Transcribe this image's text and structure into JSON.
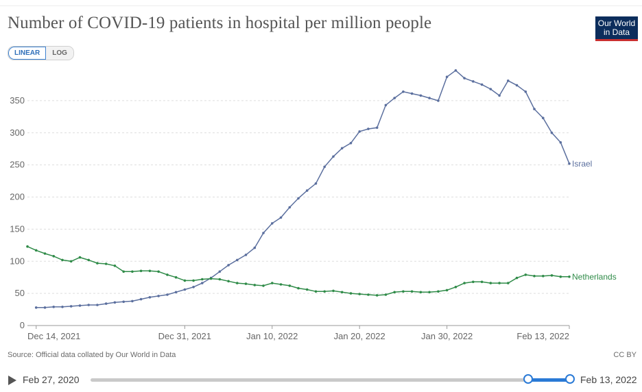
{
  "title": "Number of COVID-19 patients in hospital per million people",
  "logo": {
    "line1": "Our World",
    "line2": "in Data"
  },
  "scale": {
    "linear": "LINEAR",
    "log": "LOG",
    "active": "linear"
  },
  "source": "Source: Official data collated by Our World in Data",
  "license": "CC BY",
  "timeline": {
    "start_label": "Feb 27, 2020",
    "end_label": "Feb 13, 2022"
  },
  "colors": {
    "israel": "#5b6f9e",
    "netherlands": "#2f8b48",
    "grid": "#dddddd",
    "axis": "#9a9a9a"
  },
  "chart_data": {
    "type": "line",
    "title": "Number of COVID-19 patients in hospital per million people",
    "xlabel": "",
    "ylabel": "",
    "ylim": [
      0,
      400
    ],
    "yticks": [
      0,
      50,
      100,
      150,
      200,
      250,
      300,
      350
    ],
    "x_start": "2021-12-13",
    "x_end": "2022-02-13",
    "xticks": [
      {
        "day": 1,
        "label": "Dec 14, 2021"
      },
      {
        "day": 18,
        "label": "Dec 31, 2021"
      },
      {
        "day": 28,
        "label": "Jan 10, 2022"
      },
      {
        "day": 38,
        "label": "Jan 20, 2022"
      },
      {
        "day": 48,
        "label": "Jan 30, 2022"
      },
      {
        "day": 62,
        "label": "Feb 13, 2022"
      }
    ],
    "series": [
      {
        "name": "Israel",
        "label": "Israel",
        "color": "#5b6f9e",
        "values": [
          28,
          28,
          29,
          29,
          30,
          31,
          32,
          32,
          34,
          36,
          37,
          38,
          41,
          44,
          46,
          48,
          52,
          56,
          60,
          66,
          74,
          84,
          94,
          102,
          110,
          121,
          144,
          159,
          168,
          184,
          198,
          210,
          221,
          247,
          263,
          276,
          284,
          302,
          306,
          308,
          343,
          354,
          364,
          361,
          358,
          354,
          350,
          387,
          397,
          385,
          380,
          375,
          368,
          358,
          381,
          374,
          364,
          337,
          323,
          300,
          285,
          252
        ]
      },
      {
        "name": "Netherlands",
        "label": "Netherlands",
        "color": "#2f8b48",
        "values": [
          123,
          117,
          112,
          108,
          102,
          100,
          106,
          102,
          97,
          96,
          93,
          84,
          84,
          85,
          85,
          84,
          79,
          75,
          70,
          70,
          72,
          73,
          72,
          69,
          66,
          65,
          63,
          62,
          66,
          64,
          62,
          58,
          56,
          53,
          53,
          54,
          52,
          50,
          49,
          48,
          47,
          48,
          52,
          53,
          53,
          52,
          52,
          53,
          55,
          60,
          66,
          68,
          68,
          66,
          66,
          66,
          74,
          79,
          77,
          77,
          78,
          76,
          76
        ]
      }
    ]
  }
}
